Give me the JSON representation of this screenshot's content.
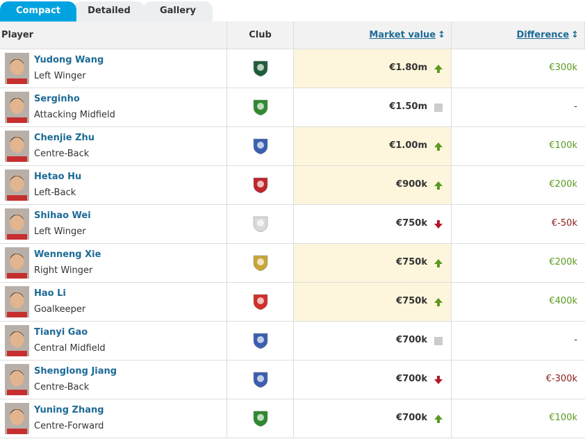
{
  "tabs": [
    "Compact",
    "Detailed",
    "Gallery"
  ],
  "table": {
    "headers": [
      "Player",
      "Club",
      "Market value",
      "Difference"
    ],
    "rows": [
      {
        "name": "Yudong Wang",
        "position": "Left Winger",
        "market_value": "€1.80m",
        "difference": "€300k",
        "trend": "up",
        "highlighted": true,
        "club_color": "#1f5e3a"
      },
      {
        "name": "Serginho",
        "position": "Attacking Midfield",
        "market_value": "€1.50m",
        "difference": "-",
        "trend": "none",
        "highlighted": false,
        "club_color": "#2f8a2f"
      },
      {
        "name": "Chenjie Zhu",
        "position": "Centre-Back",
        "market_value": "€1.00m",
        "difference": "€100k",
        "trend": "up",
        "highlighted": true,
        "club_color": "#3b5fb0"
      },
      {
        "name": "Hetao Hu",
        "position": "Left-Back",
        "market_value": "€900k",
        "difference": "€200k",
        "trend": "up",
        "highlighted": true,
        "club_color": "#c0262d"
      },
      {
        "name": "Shihao Wei",
        "position": "Left Winger",
        "market_value": "€750k",
        "difference": "€-50k",
        "trend": "down",
        "highlighted": false,
        "club_color": "#d9d9d9"
      },
      {
        "name": "Wenneng Xie",
        "position": "Right Winger",
        "market_value": "€750k",
        "difference": "€200k",
        "trend": "up",
        "highlighted": true,
        "club_color": "#c8a53a"
      },
      {
        "name": "Hao Li",
        "position": "Goalkeeper",
        "market_value": "€750k",
        "difference": "€400k",
        "trend": "up",
        "highlighted": true,
        "club_color": "#d0302a"
      },
      {
        "name": "Tianyi Gao",
        "position": "Central Midfield",
        "market_value": "€700k",
        "difference": "-",
        "trend": "none",
        "highlighted": false,
        "club_color": "#3b5fb0"
      },
      {
        "name": "Shenglong Jiang",
        "position": "Centre-Back",
        "market_value": "€700k",
        "difference": "€-300k",
        "trend": "down",
        "highlighted": false,
        "club_color": "#3b5fb0"
      },
      {
        "name": "Yuning Zhang",
        "position": "Centre-Forward",
        "market_value": "€700k",
        "difference": "€100k",
        "trend": "up",
        "highlighted": false,
        "club_color": "#2f8a2f"
      }
    ]
  }
}
